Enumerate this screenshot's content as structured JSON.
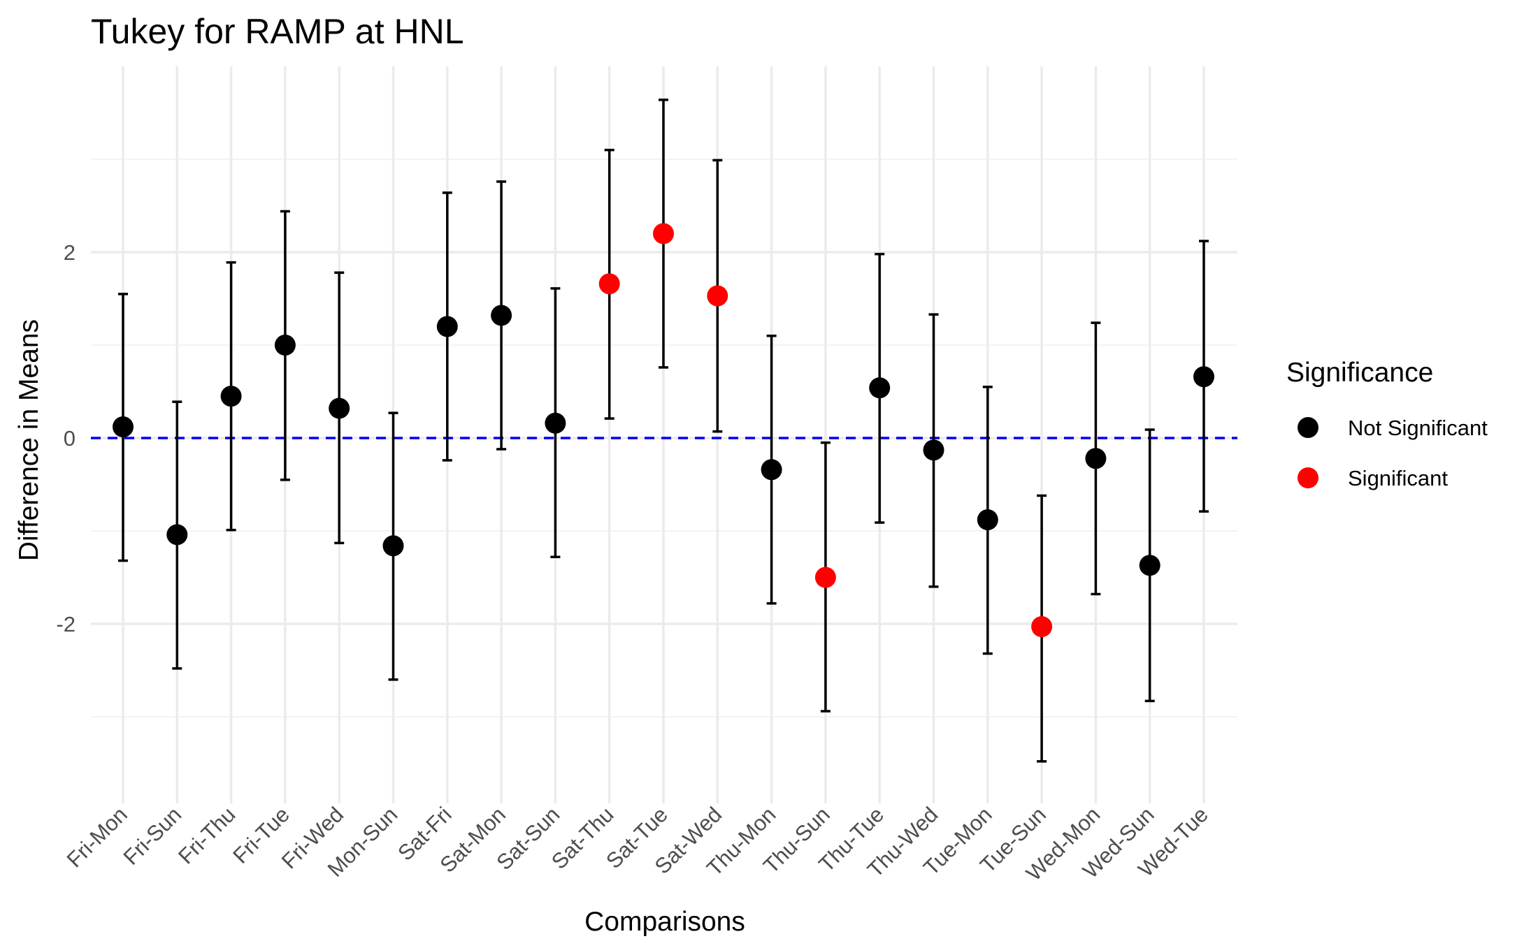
{
  "chart_data": {
    "type": "scatter",
    "title": "Tukey for RAMP at HNL",
    "xlabel": "Comparisons",
    "ylabel": "Difference in Means",
    "ylim": [
      -3.9,
      4.0
    ],
    "yticks": [
      -2,
      0,
      2
    ],
    "reference_line": {
      "y": 0,
      "color": "#0000ff",
      "style": "dashed"
    },
    "grid": true,
    "legend": {
      "title": "Significance",
      "position": "right",
      "entries": [
        {
          "label": "Not Significant",
          "color": "#000000"
        },
        {
          "label": "Significant",
          "color": "#ff0000"
        }
      ]
    },
    "categories": [
      "Fri-Mon",
      "Fri-Sun",
      "Fri-Thu",
      "Fri-Tue",
      "Fri-Wed",
      "Mon-Sun",
      "Sat-Fri",
      "Sat-Mon",
      "Sat-Sun",
      "Sat-Thu",
      "Sat-Tue",
      "Sat-Wed",
      "Thu-Mon",
      "Thu-Sun",
      "Thu-Tue",
      "Thu-Wed",
      "Tue-Mon",
      "Tue-Sun",
      "Wed-Mon",
      "Wed-Sun",
      "Wed-Tue"
    ],
    "diff": [
      0.12,
      -1.04,
      0.45,
      1.0,
      0.32,
      -1.16,
      1.2,
      1.32,
      0.16,
      1.66,
      2.2,
      1.53,
      -0.34,
      -1.5,
      0.54,
      -0.13,
      -0.88,
      -2.03,
      -0.22,
      -1.37,
      0.66
    ],
    "lwr": [
      -1.32,
      -2.48,
      -0.99,
      -0.45,
      -1.13,
      -2.6,
      -0.24,
      -0.12,
      -1.28,
      0.21,
      0.76,
      0.07,
      -1.78,
      -2.94,
      -0.91,
      -1.6,
      -2.32,
      -3.48,
      -1.68,
      -2.83,
      -0.79
    ],
    "upr": [
      1.55,
      0.39,
      1.89,
      2.44,
      1.78,
      0.27,
      2.64,
      2.76,
      1.61,
      3.1,
      3.64,
      2.99,
      1.1,
      -0.05,
      1.98,
      1.33,
      0.55,
      -0.62,
      1.24,
      0.09,
      2.12
    ],
    "significance": [
      "Not Significant",
      "Not Significant",
      "Not Significant",
      "Not Significant",
      "Not Significant",
      "Not Significant",
      "Not Significant",
      "Not Significant",
      "Not Significant",
      "Significant",
      "Significant",
      "Significant",
      "Not Significant",
      "Significant",
      "Not Significant",
      "Not Significant",
      "Not Significant",
      "Significant",
      "Not Significant",
      "Not Significant",
      "Not Significant"
    ]
  }
}
